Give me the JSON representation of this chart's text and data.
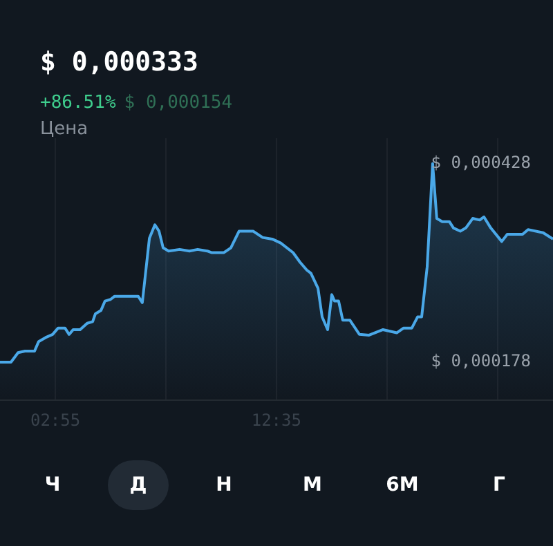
{
  "chart_data": {
    "type": "area",
    "title": "$ 0,000333",
    "ylabel": "Цена",
    "annotations": [
      "+86.51%",
      "$ 0,000154",
      "Ч",
      "Д",
      "Н",
      "М",
      "6М",
      "Г"
    ],
    "yticks": [
      {
        "value": 0.000428,
        "label": "$ 0,000428"
      },
      {
        "value": 0.000178,
        "label": "$ 0,000178"
      }
    ],
    "x": [
      0.5,
      0.98,
      1.29,
      1.59,
      2.01,
      2.19,
      2.49,
      2.8,
      3.04,
      3.34,
      3.52,
      3.7,
      4.0,
      4.31,
      4.55,
      4.67,
      4.91,
      5.09,
      5.33,
      5.51,
      6.54,
      6.72,
      7.03,
      7.27,
      7.45,
      7.63,
      7.87,
      8.35,
      8.78,
      9.14,
      9.56,
      9.74,
      10.29,
      10.59,
      10.95,
      11.56,
      11.98,
      12.4,
      12.77,
      13.31,
      13.61,
      13.91,
      14.09,
      14.4,
      14.58,
      14.82,
      15.0,
      15.12,
      15.3,
      15.48,
      15.79,
      16.21,
      16.63,
      17.24,
      17.84,
      18.14,
      18.5,
      18.75,
      18.93,
      19.17,
      19.41,
      19.59,
      19.83,
      20.14,
      20.32,
      20.62,
      20.86,
      21.16,
      21.47,
      21.65,
      21.95,
      22.43,
      22.67,
      23.34,
      23.58,
      24.24,
      24.67
    ],
    "series": [
      {
        "color": "#4aa8e8",
        "values": [
          0.000178,
          0.000178,
          0.00019,
          0.000192,
          0.000192,
          0.000204,
          0.000209,
          0.000213,
          0.000221,
          0.000221,
          0.000213,
          0.000219,
          0.000219,
          0.000227,
          0.000229,
          0.000239,
          0.000243,
          0.000255,
          0.000257,
          0.000261,
          0.000261,
          0.000253,
          0.000334,
          0.000351,
          0.000343,
          0.000322,
          0.000318,
          0.00032,
          0.000318,
          0.00032,
          0.000318,
          0.000316,
          0.000316,
          0.000322,
          0.000343,
          0.000343,
          0.000335,
          0.000333,
          0.000328,
          0.000316,
          0.000304,
          0.000294,
          0.00029,
          0.000271,
          0.000235,
          0.000219,
          0.000263,
          0.000255,
          0.000255,
          0.000231,
          0.000231,
          0.000213,
          0.000212,
          0.000219,
          0.000215,
          0.000221,
          0.000221,
          0.000235,
          0.000235,
          0.000298,
          0.000428,
          0.000359,
          0.000355,
          0.000355,
          0.000347,
          0.000343,
          0.000347,
          0.000359,
          0.000357,
          0.000361,
          0.000347,
          0.00033,
          0.000339,
          0.000339,
          0.000345,
          0.000341,
          0.000333
        ]
      }
    ],
    "xlim": [
      0.5,
      24.67
    ],
    "ylim": [
      0.00013,
      0.00046
    ],
    "xticks": [
      {
        "value": 2.92,
        "label": "02:55"
      },
      {
        "value": 7.75,
        "label": null
      },
      {
        "value": 12.58,
        "label": "12:35"
      },
      {
        "value": 17.42,
        "label": null
      },
      {
        "value": 22.25,
        "label": null
      }
    ],
    "grid": "x",
    "legend": false,
    "marker": "none",
    "line_style": "solid"
  }
}
